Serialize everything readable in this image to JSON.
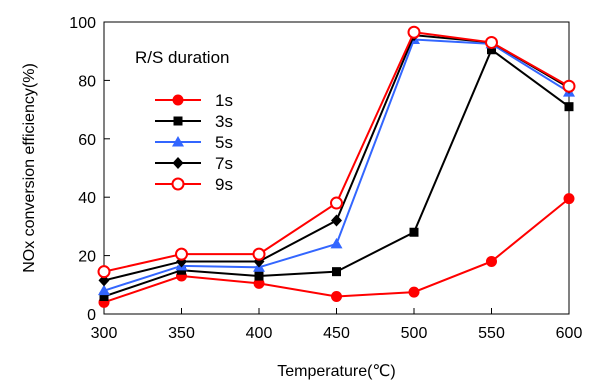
{
  "chart_data": {
    "type": "line",
    "xlabel": "Temperature(℃)",
    "ylabel": "NOx conversion efficiency(%)",
    "legend_title": "R/S duration",
    "legend_position": "top-left",
    "x": [
      300,
      350,
      400,
      450,
      500,
      550,
      600
    ],
    "xlim": [
      300,
      600
    ],
    "ylim": [
      0,
      100
    ],
    "xticks": [
      300,
      350,
      400,
      450,
      500,
      550,
      600
    ],
    "yticks": [
      0,
      20,
      40,
      60,
      80,
      100
    ],
    "grid": false,
    "series": [
      {
        "name": "1s",
        "color": "#ff0000",
        "marker": "circle",
        "values": [
          4,
          13,
          10.5,
          6,
          7.5,
          18,
          39.5
        ]
      },
      {
        "name": "3s",
        "color": "#000000",
        "marker": "square",
        "values": [
          6,
          15,
          13,
          14.5,
          28,
          90.5,
          71
        ]
      },
      {
        "name": "5s",
        "color": "#3366ff",
        "marker": "triangle",
        "values": [
          8,
          16.5,
          16,
          24,
          94,
          92.5,
          76
        ]
      },
      {
        "name": "7s",
        "color": "#000000",
        "marker": "diamond",
        "values": [
          11.5,
          18,
          18,
          32,
          95.5,
          93,
          77.5
        ]
      },
      {
        "name": "9s",
        "color": "#ff0000",
        "marker": "open-circle",
        "values": [
          14.5,
          20.5,
          20.5,
          38,
          96.5,
          93,
          78
        ]
      }
    ]
  }
}
